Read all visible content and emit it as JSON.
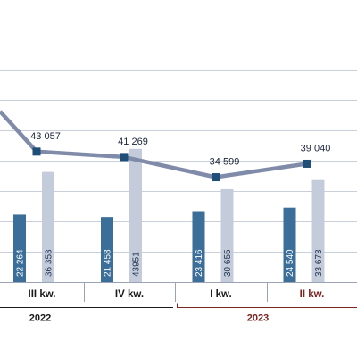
{
  "chart_data": {
    "type": "bar",
    "categories": [
      "III kw.",
      "IV kw.",
      "I kw.",
      "II kw."
    ],
    "years": [
      {
        "label": "2022",
        "color": "#1a1a1a",
        "categories": [
          "III kw.",
          "IV kw."
        ]
      },
      {
        "label": "2023",
        "color": "#7a2420",
        "categories": [
          "I kw.",
          "II kw."
        ]
      }
    ],
    "series": [
      {
        "type": "bar",
        "color": "#3b6e99",
        "values": [
          22264,
          21458,
          23416,
          24540
        ],
        "labels": [
          "22 264",
          "21 458",
          "23 416",
          "24 540"
        ]
      },
      {
        "type": "bar",
        "color": "#c4ccdb",
        "values": [
          36353,
          43951,
          30655,
          33673
        ],
        "labels": [
          "36 353",
          "43951",
          "30 655",
          "33 673"
        ]
      },
      {
        "type": "line",
        "color": "#7f8ba8",
        "marker_color": "#1f4e79",
        "values": [
          43057,
          41269,
          34599,
          39040
        ],
        "labels": [
          "43 057",
          "41 269",
          "34 599",
          "39 040"
        ]
      }
    ],
    "category_label_colors": [
      "#1a1a1a",
      "#1a1a1a",
      "#1a1a1a",
      "#7a2420"
    ],
    "ylim": [
      0,
      60000
    ],
    "grid": true
  }
}
